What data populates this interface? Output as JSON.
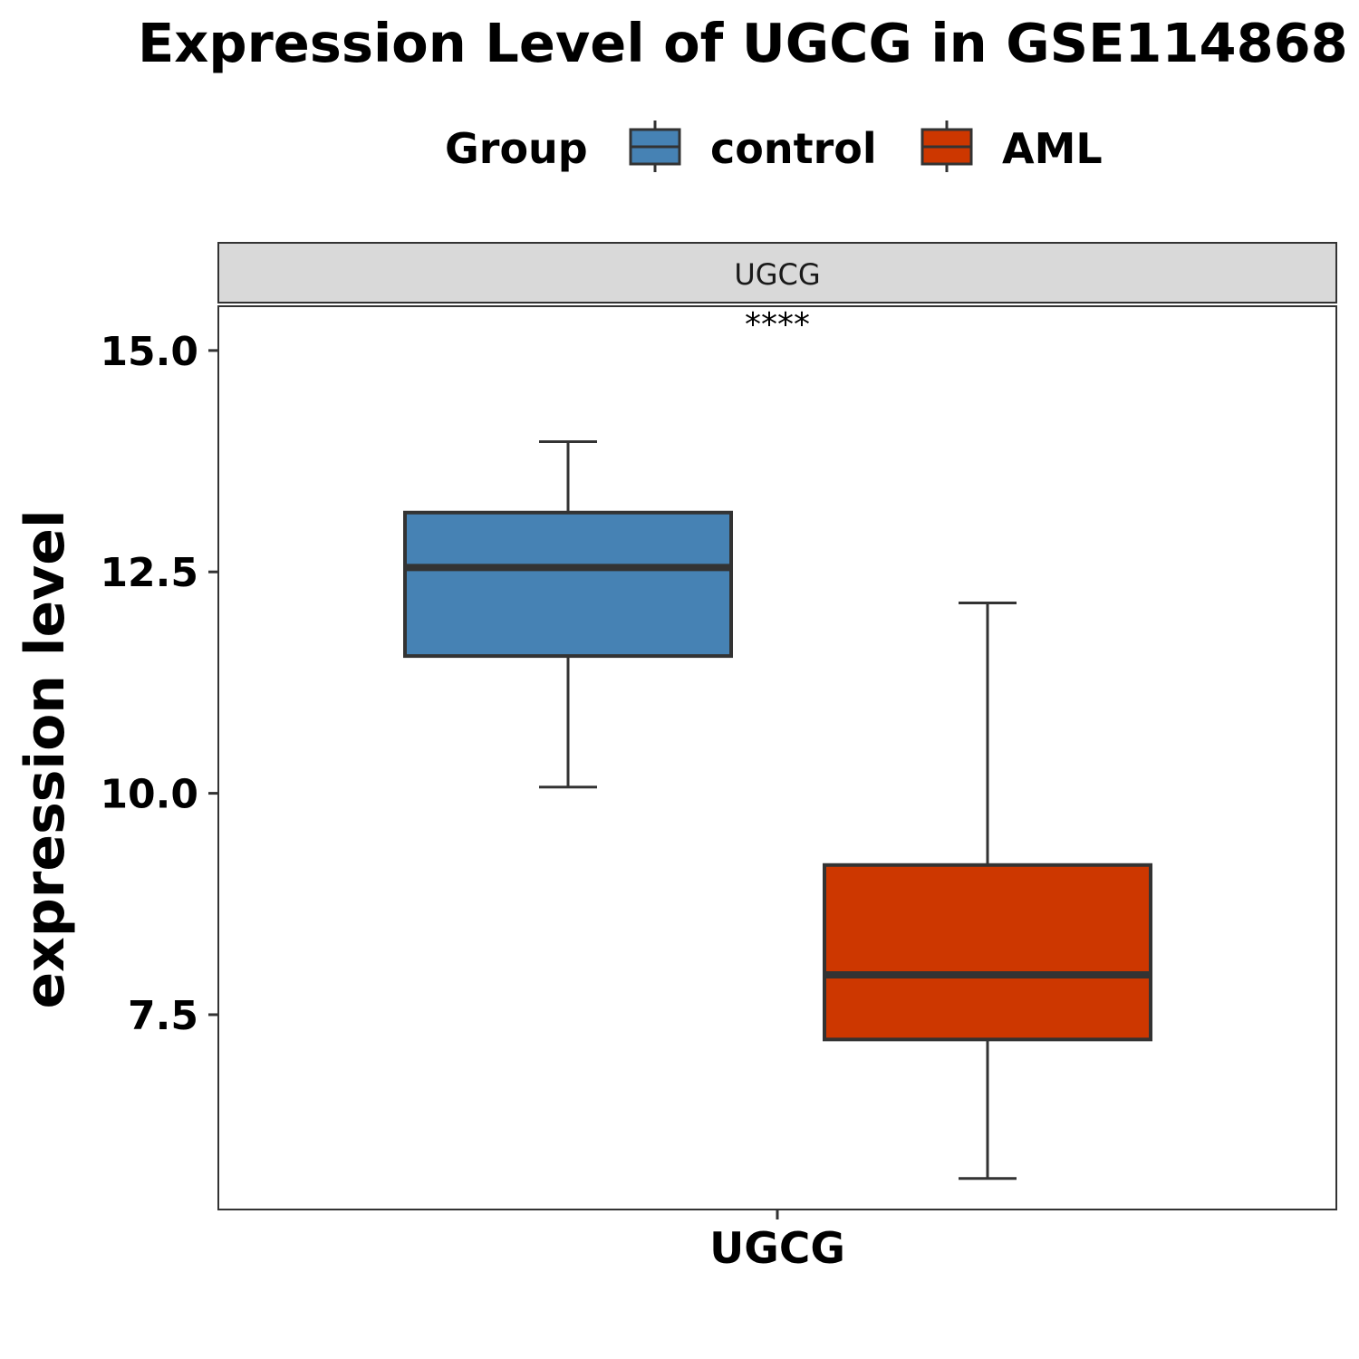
{
  "chart_data": {
    "type": "box",
    "title": "Expression Level of UGCG in GSE114868",
    "legend": {
      "title": "Group",
      "position": "top",
      "entries": [
        {
          "label": "control",
          "color": "#4682B4"
        },
        {
          "label": "AML",
          "color": "#CD3700"
        }
      ]
    },
    "facet_label": "UGCG",
    "significance_label": "****",
    "xlabel": "",
    "ylabel": "expression level",
    "categories": [
      "UGCG"
    ],
    "y_ticks": [
      7.5,
      10.0,
      12.5,
      15.0
    ],
    "y_tick_labels": [
      "7.5",
      "10.0",
      "12.5",
      "15.0"
    ],
    "ylim": [
      5.3,
      15.5
    ],
    "grid": false,
    "series": [
      {
        "name": "control",
        "color": "#4682B4",
        "stats": {
          "min": 10.07,
          "q1": 11.55,
          "median": 12.55,
          "q3": 13.17,
          "max": 13.97
        }
      },
      {
        "name": "AML",
        "color": "#CD3700",
        "stats": {
          "min": 5.65,
          "q1": 7.22,
          "median": 7.95,
          "q3": 9.19,
          "max": 12.15
        }
      }
    ]
  }
}
